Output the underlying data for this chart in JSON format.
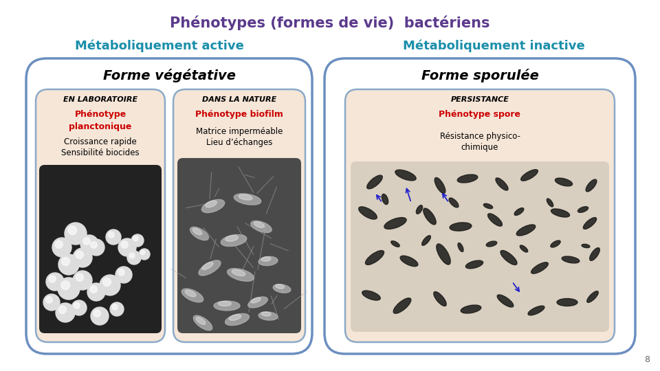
{
  "title": "Phénotypes (formes de vie)  bactériens",
  "title_color": "#5B3A8C",
  "title_fontsize": 15,
  "subtitle_active": "Métaboliquement active",
  "subtitle_inactive": "Métaboliquement inactive",
  "subtitle_color": "#1B8FAA",
  "subtitle_fontsize": 13,
  "forme_vegetative": "Forme végétative",
  "forme_sporule": "Forme sporulée",
  "forme_fontsize": 13,
  "box_edge_color": "#6B8EC0",
  "box_inner_bg": "#F5E6D8",
  "lab_header": "EN LABORATOIRE",
  "lab_phenotype_line1": "Phénotype",
  "lab_phenotype_line2": "planctonique",
  "lab_phenotype_color": "#CC0000",
  "lab_text_line1": "Croissance rapide",
  "lab_text_line2": "Sensibilité biocides",
  "nature_header": "DANS LA NATURE",
  "nature_phenotype": "Phénotype biofilm",
  "nature_phenotype_color": "#CC0000",
  "nature_text_line1": "Matrice imperméable",
  "nature_text_line2": "Lieu d’échanges",
  "persist_header": "PERSISTANCE",
  "persist_phenotype": "Phénotype spore",
  "persist_phenotype_color": "#CC0000",
  "persist_text_line1": "Résistance physico-",
  "persist_text_line2": "chimique",
  "page_number": "8",
  "background_color": "#FFFFFF"
}
